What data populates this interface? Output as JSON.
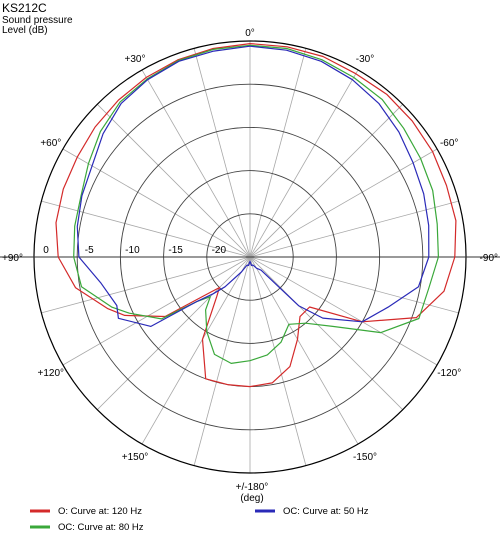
{
  "chart_data": {
    "type": "polar-line",
    "title": "KS212C",
    "subtitle_line1": "Sound pressure",
    "subtitle_line2": "Level  (dB)",
    "angle_unit_line1": "+/-180°",
    "angle_unit_line2": "(deg)",
    "radial_range_db": [
      -25,
      0
    ],
    "radial_ticks": [
      {
        "db": 0,
        "label": "0"
      },
      {
        "db": -5,
        "label": "-5"
      },
      {
        "db": -10,
        "label": "-10"
      },
      {
        "db": -15,
        "label": "-15"
      },
      {
        "db": -20,
        "label": "-20"
      }
    ],
    "angle_labels": [
      {
        "deg": 0,
        "label": "0°"
      },
      {
        "deg": 30,
        "label": "+30°"
      },
      {
        "deg": 60,
        "label": "+60°"
      },
      {
        "deg": 90,
        "label": "+90°"
      },
      {
        "deg": 120,
        "label": "+120°"
      },
      {
        "deg": 150,
        "label": "+150°"
      },
      {
        "deg": -30,
        "label": "-30°"
      },
      {
        "deg": -60,
        "label": "-60°"
      },
      {
        "deg": -90,
        "label": "-90°"
      },
      {
        "deg": -120,
        "label": "-120°"
      },
      {
        "deg": -150,
        "label": "-150°"
      }
    ],
    "grid": true,
    "legend_position": "bottom",
    "series": [
      {
        "name": "O: Curve at: 120 Hz",
        "color": "#d42a2a",
        "points": [
          [
            0,
            -0.3
          ],
          [
            10,
            -0.5
          ],
          [
            20,
            -0.7
          ],
          [
            30,
            -1.0
          ],
          [
            40,
            -1.3
          ],
          [
            50,
            -1.6
          ],
          [
            60,
            -1.9
          ],
          [
            70,
            -2.0
          ],
          [
            80,
            -2.2
          ],
          [
            90,
            -2.8
          ],
          [
            100,
            -4.5
          ],
          [
            110,
            -7.5
          ],
          [
            115,
            -9
          ],
          [
            125,
            -13
          ],
          [
            130,
            -18
          ],
          [
            135,
            -20
          ],
          [
            140,
            -19
          ],
          [
            150,
            -14
          ],
          [
            160,
            -10
          ],
          [
            170,
            -10
          ],
          [
            180,
            -10
          ],
          [
            190,
            -10.2
          ],
          [
            200,
            -11.5
          ],
          [
            210,
            -14
          ],
          [
            220,
            -16
          ],
          [
            230,
            -16
          ],
          [
            240,
            -10
          ],
          [
            250,
            -4.5
          ],
          [
            260,
            -2.2
          ],
          [
            270,
            -1.3
          ],
          [
            280,
            -0.8
          ],
          [
            290,
            -0.8
          ],
          [
            300,
            -0.6
          ],
          [
            310,
            -0.5
          ],
          [
            320,
            -0.4
          ],
          [
            330,
            -0.5
          ],
          [
            340,
            -0.3
          ],
          [
            350,
            -0.3
          ],
          [
            360,
            -0.3
          ]
        ]
      },
      {
        "name": "OC: Curve at: 80 Hz",
        "color": "#3aa83a",
        "points": [
          [
            0,
            -0.5
          ],
          [
            10,
            -0.6
          ],
          [
            20,
            -0.8
          ],
          [
            30,
            -1.2
          ],
          [
            40,
            -1.6
          ],
          [
            50,
            -2.4
          ],
          [
            60,
            -3.4
          ],
          [
            70,
            -4.2
          ],
          [
            80,
            -4.4
          ],
          [
            90,
            -4.6
          ],
          [
            100,
            -5.2
          ],
          [
            110,
            -8
          ],
          [
            115,
            -9.6
          ],
          [
            125,
            -12.5
          ],
          [
            130,
            -17
          ],
          [
            135,
            -18.5
          ],
          [
            140,
            -17
          ],
          [
            150,
            -15
          ],
          [
            160,
            -13
          ],
          [
            170,
            -12.5
          ],
          [
            180,
            -13
          ],
          [
            190,
            -13.5
          ],
          [
            200,
            -14.5
          ],
          [
            210,
            -16
          ],
          [
            220,
            -15
          ],
          [
            230,
            -12.5
          ],
          [
            240,
            -7.5
          ],
          [
            250,
            -4.2
          ],
          [
            260,
            -4
          ],
          [
            270,
            -3.2
          ],
          [
            280,
            -3
          ],
          [
            290,
            -2.5
          ],
          [
            300,
            -2.2
          ],
          [
            310,
            -1.8
          ],
          [
            320,
            -1.2
          ],
          [
            330,
            -1
          ],
          [
            340,
            -0.7
          ],
          [
            350,
            -0.5
          ],
          [
            360,
            -0.5
          ]
        ]
      },
      {
        "name": "OC: Curve at: 50 Hz",
        "color": "#2a2ab8",
        "points": [
          [
            0,
            -0.6
          ],
          [
            10,
            -0.8
          ],
          [
            20,
            -0.9
          ],
          [
            30,
            -1.3
          ],
          [
            40,
            -1.8
          ],
          [
            50,
            -2.8
          ],
          [
            60,
            -3.9
          ],
          [
            70,
            -4.3
          ],
          [
            80,
            -4.7
          ],
          [
            90,
            -5.2
          ],
          [
            100,
            -7.5
          ],
          [
            110,
            -8.6
          ],
          [
            115,
            -8.2
          ],
          [
            125,
            -11
          ],
          [
            130,
            -17
          ],
          [
            135,
            -19
          ],
          [
            140,
            -20.5
          ],
          [
            150,
            -23
          ],
          [
            160,
            -24
          ],
          [
            170,
            -24
          ],
          [
            180,
            -24.5
          ],
          [
            190,
            -24
          ],
          [
            200,
            -24
          ],
          [
            210,
            -23.5
          ],
          [
            220,
            -23
          ],
          [
            225,
            -17
          ],
          [
            230,
            -14
          ],
          [
            240,
            -10
          ],
          [
            250,
            -8
          ],
          [
            260,
            -5.2
          ],
          [
            270,
            -4.3
          ],
          [
            280,
            -4
          ],
          [
            290,
            -3.6
          ],
          [
            300,
            -3.2
          ],
          [
            310,
            -2.5
          ],
          [
            320,
            -1.8
          ],
          [
            330,
            -1.3
          ],
          [
            340,
            -0.9
          ],
          [
            350,
            -0.7
          ],
          [
            360,
            -0.6
          ]
        ]
      }
    ]
  }
}
